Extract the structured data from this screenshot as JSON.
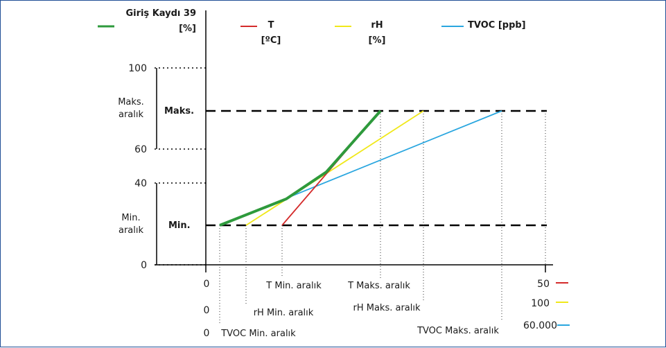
{
  "legend": {
    "input_reg": {
      "label_line1": "Giriş Kaydı 39",
      "label_line2": "[%]",
      "color": "#2e9a3c"
    },
    "t": {
      "label_line1": "T",
      "label_line2": "[ºC]",
      "color": "#d42a2a"
    },
    "rh": {
      "label_line1": "rH",
      "label_line2": "[%]",
      "color": "#f0e81a"
    },
    "tvoc": {
      "label": "TVOC [ppb]",
      "color": "#29a6df"
    }
  },
  "y_axis": {
    "ticks": [
      "100",
      "60",
      "40",
      "0"
    ],
    "max_range_label_line1": "Maks.",
    "max_range_label_line2": "aralık",
    "min_range_label_line1": "Min.",
    "min_range_label_line2": "aralık",
    "max_level_label": "Maks.",
    "min_level_label": "Min."
  },
  "x_axis": {
    "t_row": {
      "start": "0",
      "min_label": "T Min. aralık",
      "max_label": "T Maks. aralık",
      "end": "50"
    },
    "rh_row": {
      "start": "0",
      "min_label": "rH Min. aralık",
      "max_label": "rH Maks. aralık",
      "end": "100"
    },
    "tvoc_row": {
      "start": "0",
      "min_label": "TVOC Min. aralık",
      "max_label": "TVOC Maks. aralık",
      "end": "60.000"
    }
  }
}
